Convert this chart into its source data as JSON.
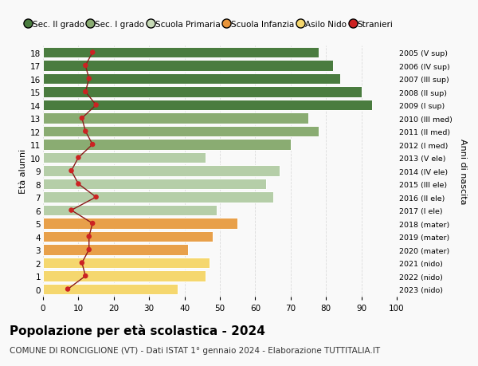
{
  "ages": [
    0,
    1,
    2,
    3,
    4,
    5,
    6,
    7,
    8,
    9,
    10,
    11,
    12,
    13,
    14,
    15,
    16,
    17,
    18
  ],
  "bar_values": [
    38,
    46,
    47,
    41,
    48,
    55,
    49,
    65,
    63,
    67,
    46,
    70,
    78,
    75,
    93,
    90,
    84,
    82,
    78
  ],
  "bar_colors": [
    "#f5d76e",
    "#f5d76e",
    "#f5d76e",
    "#e8a04a",
    "#e8a04a",
    "#e8a04a",
    "#b5cea8",
    "#b5cea8",
    "#b5cea8",
    "#b5cea8",
    "#b5cea8",
    "#8aac72",
    "#8aac72",
    "#8aac72",
    "#4a7c3f",
    "#4a7c3f",
    "#4a7c3f",
    "#4a7c3f",
    "#4a7c3f"
  ],
  "stranieri_values": [
    7,
    12,
    11,
    13,
    13,
    14,
    8,
    15,
    10,
    8,
    10,
    14,
    12,
    11,
    15,
    12,
    13,
    12,
    14
  ],
  "right_labels": [
    "2023 (nido)",
    "2022 (nido)",
    "2021 (nido)",
    "2020 (mater)",
    "2019 (mater)",
    "2018 (mater)",
    "2017 (I ele)",
    "2016 (II ele)",
    "2015 (III ele)",
    "2014 (IV ele)",
    "2013 (V ele)",
    "2012 (I med)",
    "2011 (II med)",
    "2010 (III med)",
    "2009 (I sup)",
    "2008 (II sup)",
    "2007 (III sup)",
    "2006 (IV sup)",
    "2005 (V sup)"
  ],
  "legend_labels": [
    "Sec. II grado",
    "Sec. I grado",
    "Scuola Primaria",
    "Scuola Infanzia",
    "Asilo Nido",
    "Stranieri"
  ],
  "legend_colors": [
    "#4a7c3f",
    "#8aac72",
    "#c8dbb8",
    "#e8943a",
    "#f5d76e",
    "#cc2222"
  ],
  "title": "Popolazione per età scolastica - 2024",
  "subtitle": "COMUNE DI RONCIGLIONE (VT) - Dati ISTAT 1° gennaio 2024 - Elaborazione TUTTITALIA.IT",
  "ylabel_left": "Età alunni",
  "ylabel_right": "Anni di nascita",
  "xlim": [
    0,
    100
  ],
  "xticks": [
    0,
    10,
    20,
    30,
    40,
    50,
    60,
    70,
    80,
    90,
    100
  ],
  "background_color": "#f9f9f9",
  "bar_edge_color": "white",
  "grid_color": "#d8d8d8",
  "stranieri_line_color": "#8b1a1a",
  "stranieri_dot_color": "#cc2222",
  "title_fontsize": 11,
  "subtitle_fontsize": 7.5,
  "legend_fontsize": 7.5,
  "tick_fontsize": 7.5,
  "ylabel_fontsize": 8
}
